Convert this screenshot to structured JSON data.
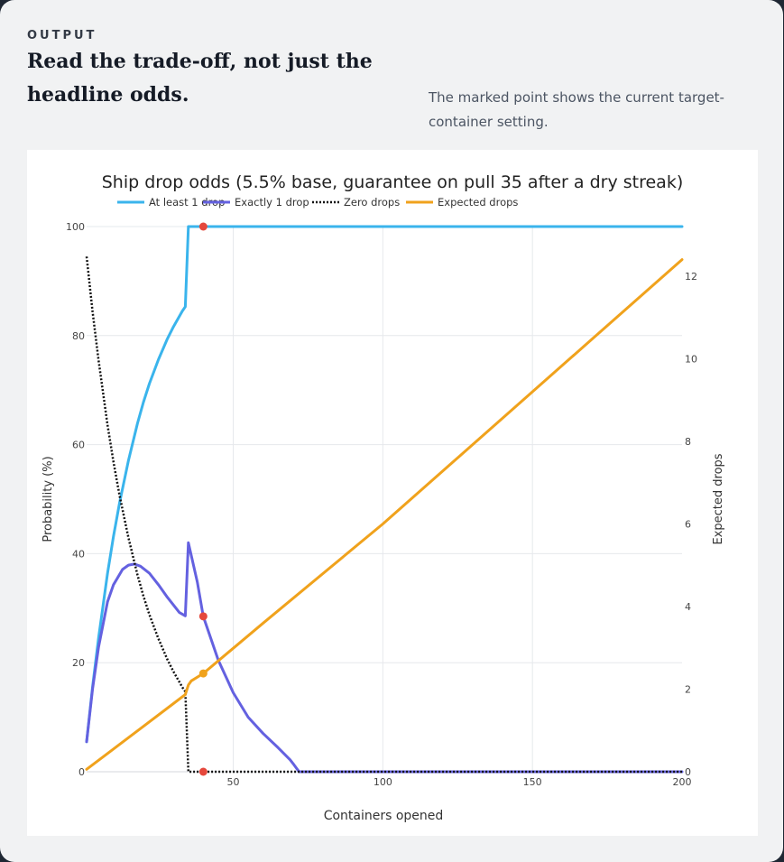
{
  "header": {
    "kicker": "OUTPUT",
    "title": "Read the trade-off, not just the headline odds.",
    "note": "The marked point shows the current target-container setting."
  },
  "colors": {
    "at_least_one": "#3ab4ec",
    "exactly_one": "#6461e0",
    "zero": "#111111",
    "expected": "#f0a21c",
    "marker": "#e5483c"
  },
  "chart_data": {
    "type": "line",
    "title": "Ship drop odds (5.5% base, guarantee on pull 35 after a dry streak)",
    "xlabel": "Containers opened",
    "ylabel": "Probability (%)",
    "y2label": "Expected drops",
    "xlim": [
      1,
      200
    ],
    "ylim": [
      0,
      100
    ],
    "y2lim": [
      0,
      13.2
    ],
    "xticks": [
      50,
      100,
      150,
      200
    ],
    "yticks": [
      0,
      20,
      40,
      60,
      80,
      100
    ],
    "y2ticks": [
      0,
      2,
      4,
      6,
      8,
      10,
      12
    ],
    "grid": true,
    "legend": "top",
    "series": [
      {
        "name": "At least 1 drop",
        "axis": "y",
        "style": "solid",
        "color": "#3ab4ec",
        "x": [
          1,
          3,
          5,
          8,
          10,
          12,
          15,
          18,
          20,
          22,
          25,
          28,
          30,
          33,
          34,
          35,
          36,
          40,
          60,
          100,
          150,
          200
        ],
        "y": [
          5.5,
          15.6,
          24.6,
          36.4,
          43.2,
          49.3,
          57.1,
          63.9,
          67.8,
          71.2,
          75.6,
          79.4,
          81.6,
          84.5,
          85.3,
          100,
          100,
          100,
          100,
          100,
          100,
          100
        ]
      },
      {
        "name": "Exactly 1 drop",
        "axis": "y",
        "style": "solid",
        "color": "#6461e0",
        "x": [
          1,
          3,
          5,
          8,
          10,
          13,
          15,
          17,
          19,
          22,
          25,
          28,
          30,
          32,
          34,
          35,
          38,
          40,
          45,
          50,
          55,
          60,
          65,
          69,
          70,
          72,
          100,
          150,
          200
        ],
        "y": [
          5.5,
          15.2,
          22.9,
          31.2,
          34.3,
          37.1,
          37.9,
          38.1,
          37.7,
          36.4,
          34.3,
          32,
          30.6,
          29.2,
          28.6,
          42,
          34.8,
          28.5,
          20.5,
          14.5,
          10,
          7,
          4.4,
          2.2,
          1.5,
          0,
          0,
          0,
          0
        ]
      },
      {
        "name": "Zero drops",
        "axis": "y",
        "style": "dotted",
        "color": "#111111",
        "x": [
          1,
          3,
          5,
          8,
          10,
          12,
          15,
          18,
          20,
          22,
          25,
          28,
          30,
          33,
          34,
          35,
          40,
          100,
          150,
          200
        ],
        "y": [
          94.5,
          84.4,
          75.4,
          63.6,
          56.8,
          50.7,
          42.9,
          36.1,
          32.2,
          28.8,
          24.4,
          20.6,
          18.4,
          15.5,
          14.7,
          0,
          0,
          0,
          0,
          0
        ]
      },
      {
        "name": "Expected drops",
        "axis": "y2",
        "style": "solid",
        "color": "#f0a21c",
        "x": [
          1,
          10,
          20,
          30,
          34,
          35,
          36,
          40,
          60,
          100,
          150,
          200
        ],
        "y": [
          0.06,
          0.55,
          1.1,
          1.65,
          1.87,
          2.1,
          2.2,
          2.38,
          3.6,
          6.0,
          9.2,
          12.4
        ]
      }
    ],
    "markers": [
      {
        "x": 40,
        "y": 100,
        "axis": "y",
        "color": "#e5483c"
      },
      {
        "x": 40,
        "y": 28.5,
        "axis": "y",
        "color": "#e5483c"
      },
      {
        "x": 40,
        "y": 0,
        "axis": "y",
        "color": "#e5483c"
      },
      {
        "x": 40,
        "y": 2.38,
        "axis": "y2",
        "color": "#f0a21c"
      }
    ]
  }
}
